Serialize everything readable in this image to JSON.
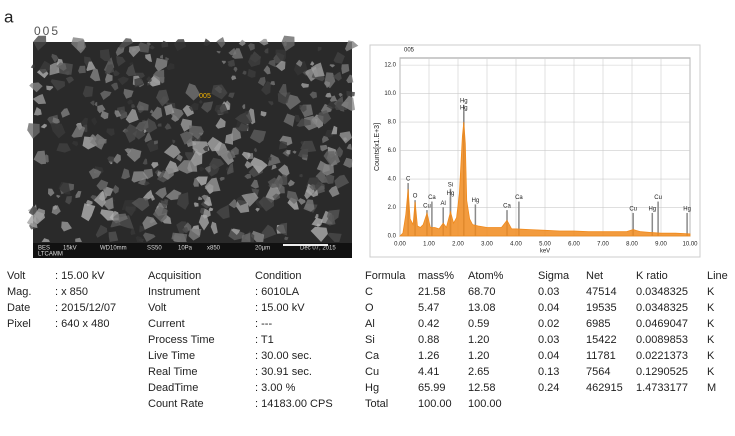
{
  "panel_label": "a",
  "image": {
    "label": "005",
    "marker": "005",
    "overlay": [
      "BES",
      "15kV",
      "WD10mm",
      "SS50",
      "10Pa",
      "x850",
      "20µm",
      "Dec 07, 2015"
    ],
    "overlay_sub": "LTCAMM"
  },
  "chart_data": {
    "type": "area",
    "title": "005",
    "y_label": "Counts[x1.E+3]",
    "x_label": "keV",
    "color": "#f08a1c",
    "peak_color": "#8a8a8a",
    "grid": true,
    "xlim": [
      0,
      10
    ],
    "ylim": [
      0,
      12.5
    ],
    "xticks": [
      {
        "value": 0,
        "label": "0.00"
      },
      {
        "value": 1,
        "label": "1.00"
      },
      {
        "value": 2,
        "label": "2.00"
      },
      {
        "value": 3,
        "label": "3.00"
      },
      {
        "value": 4,
        "label": "4.00"
      },
      {
        "value": 5,
        "label": "5.00"
      },
      {
        "value": 6,
        "label": "6.00"
      },
      {
        "value": 7,
        "label": "7.00"
      },
      {
        "value": 8,
        "label": "8.00"
      },
      {
        "value": 9,
        "label": "9.00"
      },
      {
        "value": 10,
        "label": "10.00"
      }
    ],
    "yticks": [
      {
        "value": 0,
        "label": "0.0"
      },
      {
        "value": 2,
        "label": "2.0"
      },
      {
        "value": 4,
        "label": "4.0"
      },
      {
        "value": 6,
        "label": "6.0"
      },
      {
        "value": 8,
        "label": "8.0"
      },
      {
        "value": 10,
        "label": "10.0"
      },
      {
        "value": 12,
        "label": "12.0"
      }
    ],
    "x": [
      0,
      0.1,
      0.2,
      0.28,
      0.35,
      0.45,
      0.52,
      0.6,
      0.7,
      0.8,
      0.93,
      1.05,
      1.2,
      1.35,
      1.49,
      1.6,
      1.74,
      1.85,
      1.95,
      2.05,
      2.15,
      2.2,
      2.25,
      2.3,
      2.4,
      2.5,
      2.7,
      3.0,
      3.3,
      3.5,
      3.69,
      3.85,
      4.0,
      4.5,
      5.0,
      5.5,
      6.0,
      6.5,
      7.0,
      7.5,
      7.8,
      8.04,
      8.3,
      8.6,
      9.0,
      9.5,
      10.0
    ],
    "values": [
      0,
      0.2,
      1.5,
      3.3,
      1.2,
      0.8,
      2.4,
      0.7,
      0.6,
      0.8,
      1.6,
      0.6,
      0.6,
      0.5,
      0.9,
      0.6,
      1.7,
      0.9,
      1.3,
      3.0,
      7.0,
      8.0,
      6.5,
      2.5,
      1.2,
      0.8,
      0.7,
      0.6,
      0.6,
      0.6,
      1.1,
      0.5,
      0.5,
      0.45,
      0.4,
      0.35,
      0.35,
      0.3,
      0.3,
      0.3,
      0.3,
      0.45,
      0.3,
      0.25,
      0.2,
      0.2,
      0.15
    ],
    "peaks": [
      {
        "label": "C",
        "x": 0.28,
        "y": 4.0
      },
      {
        "label": "O",
        "x": 0.52,
        "y": 2.8
      },
      {
        "label": "Ca",
        "x": 1.1,
        "y": 2.7
      },
      {
        "label": "Cu",
        "x": 0.93,
        "y": 2.1
      },
      {
        "label": "Al",
        "x": 1.49,
        "y": 2.3
      },
      {
        "label": "Si",
        "x": 1.74,
        "y": 3.6
      },
      {
        "label": "Hg",
        "x": 1.74,
        "y": 3.0
      },
      {
        "label": "Hg",
        "x": 2.2,
        "y": 9.5
      },
      {
        "label": "Hg",
        "x": 2.2,
        "y": 9.0
      },
      {
        "label": "Hg",
        "x": 2.6,
        "y": 2.5
      },
      {
        "label": "Ca",
        "x": 3.69,
        "y": 2.1
      },
      {
        "label": "Ca",
        "x": 4.1,
        "y": 2.7
      },
      {
        "label": "Cu",
        "x": 8.04,
        "y": 1.9
      },
      {
        "label": "Cu",
        "x": 8.9,
        "y": 2.7
      },
      {
        "label": "Hg",
        "x": 8.7,
        "y": 1.9
      },
      {
        "label": "Hg",
        "x": 9.9,
        "y": 1.9
      }
    ]
  },
  "info": [
    [
      "Volt",
      ": 15.00 kV"
    ],
    [
      "Mag.",
      ": x 850"
    ],
    [
      "Date",
      ": 2015/12/07"
    ],
    [
      "Pixel",
      ": 640 x 480"
    ]
  ],
  "acquisition": {
    "header": [
      "Acquisition",
      "Condition"
    ],
    "rows": [
      [
        "Instrument",
        ": 6010LA"
      ],
      [
        "Volt",
        ": 15.00 kV"
      ],
      [
        "Current",
        ": ---"
      ],
      [
        "Process Time",
        ": T1"
      ],
      [
        "Live Time",
        ": 30.00 sec."
      ],
      [
        "Real Time",
        ": 30.91 sec."
      ],
      [
        "DeadTime",
        ": 3.00 %"
      ],
      [
        "Count Rate",
        ": 14183.00 CPS"
      ]
    ]
  },
  "results": {
    "header": [
      "Formula",
      "mass%",
      "Atom%",
      "Sigma",
      "Net",
      "K ratio",
      "Line"
    ],
    "rows": [
      [
        "C",
        "21.58",
        "68.70",
        "0.03",
        "47514",
        "0.0348325",
        "K"
      ],
      [
        "O",
        "5.47",
        "13.08",
        "0.04",
        "19535",
        "0.0348325",
        "K"
      ],
      [
        "Al",
        "0.42",
        "0.59",
        "0.02",
        "6985",
        "0.0469047",
        "K"
      ],
      [
        "Si",
        "0.88",
        "1.20",
        "0.03",
        "15422",
        "0.0089853",
        "K"
      ],
      [
        "Ca",
        "1.26",
        "1.20",
        "0.04",
        "11781",
        "0.0221373",
        "K"
      ],
      [
        "Cu",
        "4.41",
        "2.65",
        "0.13",
        "7564",
        "0.1290525",
        "K"
      ],
      [
        "Hg",
        "65.99",
        "12.58",
        "0.24",
        "462915",
        "1.4733177",
        "M"
      ],
      [
        "Total",
        "100.00",
        "100.00"
      ]
    ]
  }
}
